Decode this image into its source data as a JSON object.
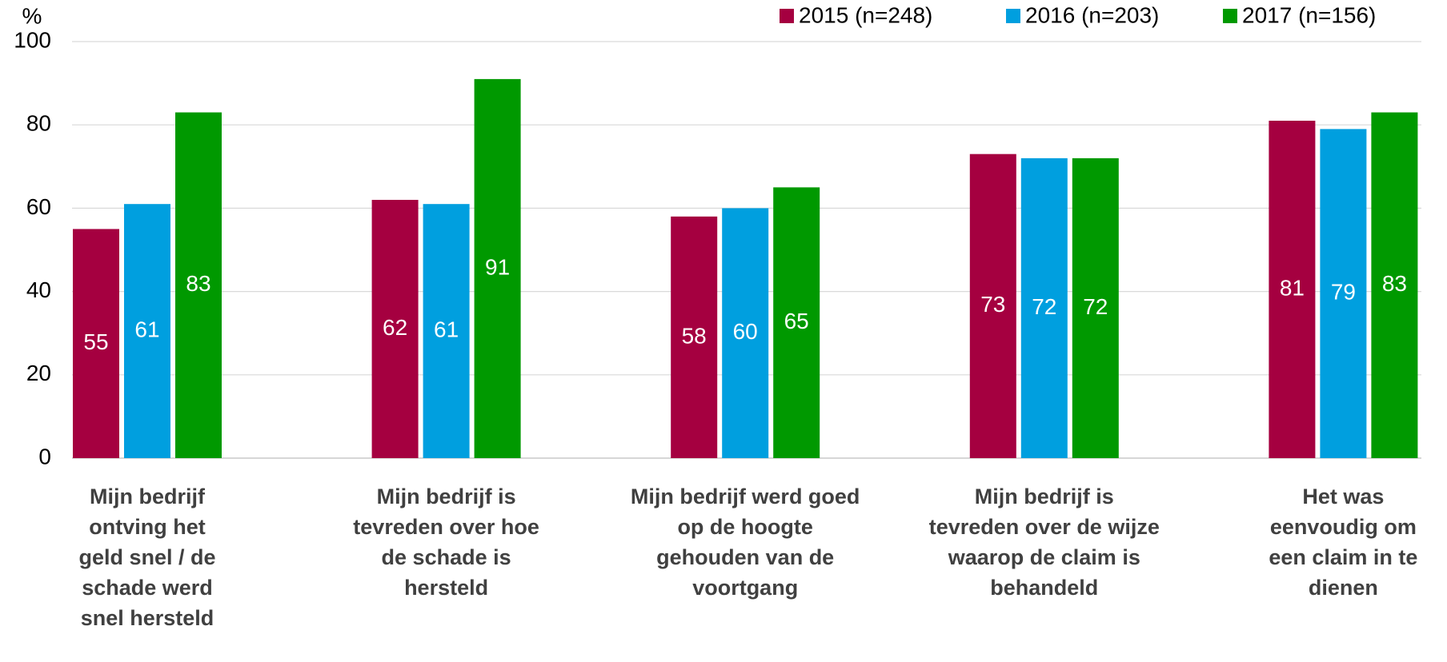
{
  "chart_data": {
    "type": "bar",
    "y_label": "%",
    "categories": [
      "Mijn bedrijf ontving het geld snel / de schade werd snel hersteld",
      "Mijn bedrijf is tevreden over hoe de schade is hersteld",
      "Mijn bedrijf werd goed op de hoogte gehouden van de voortgang",
      "Mijn bedrijf is tevreden over de wijze waarop de claim is behandeld",
      "Het was eenvoudig om een claim in te dienen"
    ],
    "series": [
      {
        "name": "2015 (n=248)",
        "color": "#a50040",
        "values": [
          55,
          62,
          58,
          73,
          81
        ]
      },
      {
        "name": "2016 (n=203)",
        "color": "#009fdf",
        "values": [
          61,
          61,
          60,
          72,
          79
        ]
      },
      {
        "name": "2017 (n=156)",
        "color": "#009900",
        "values": [
          83,
          91,
          65,
          72,
          83
        ]
      }
    ],
    "ylim": [
      0,
      100
    ],
    "yticks": [
      0,
      20,
      40,
      60,
      80,
      100
    ],
    "grid": true,
    "legend": "top-right"
  }
}
